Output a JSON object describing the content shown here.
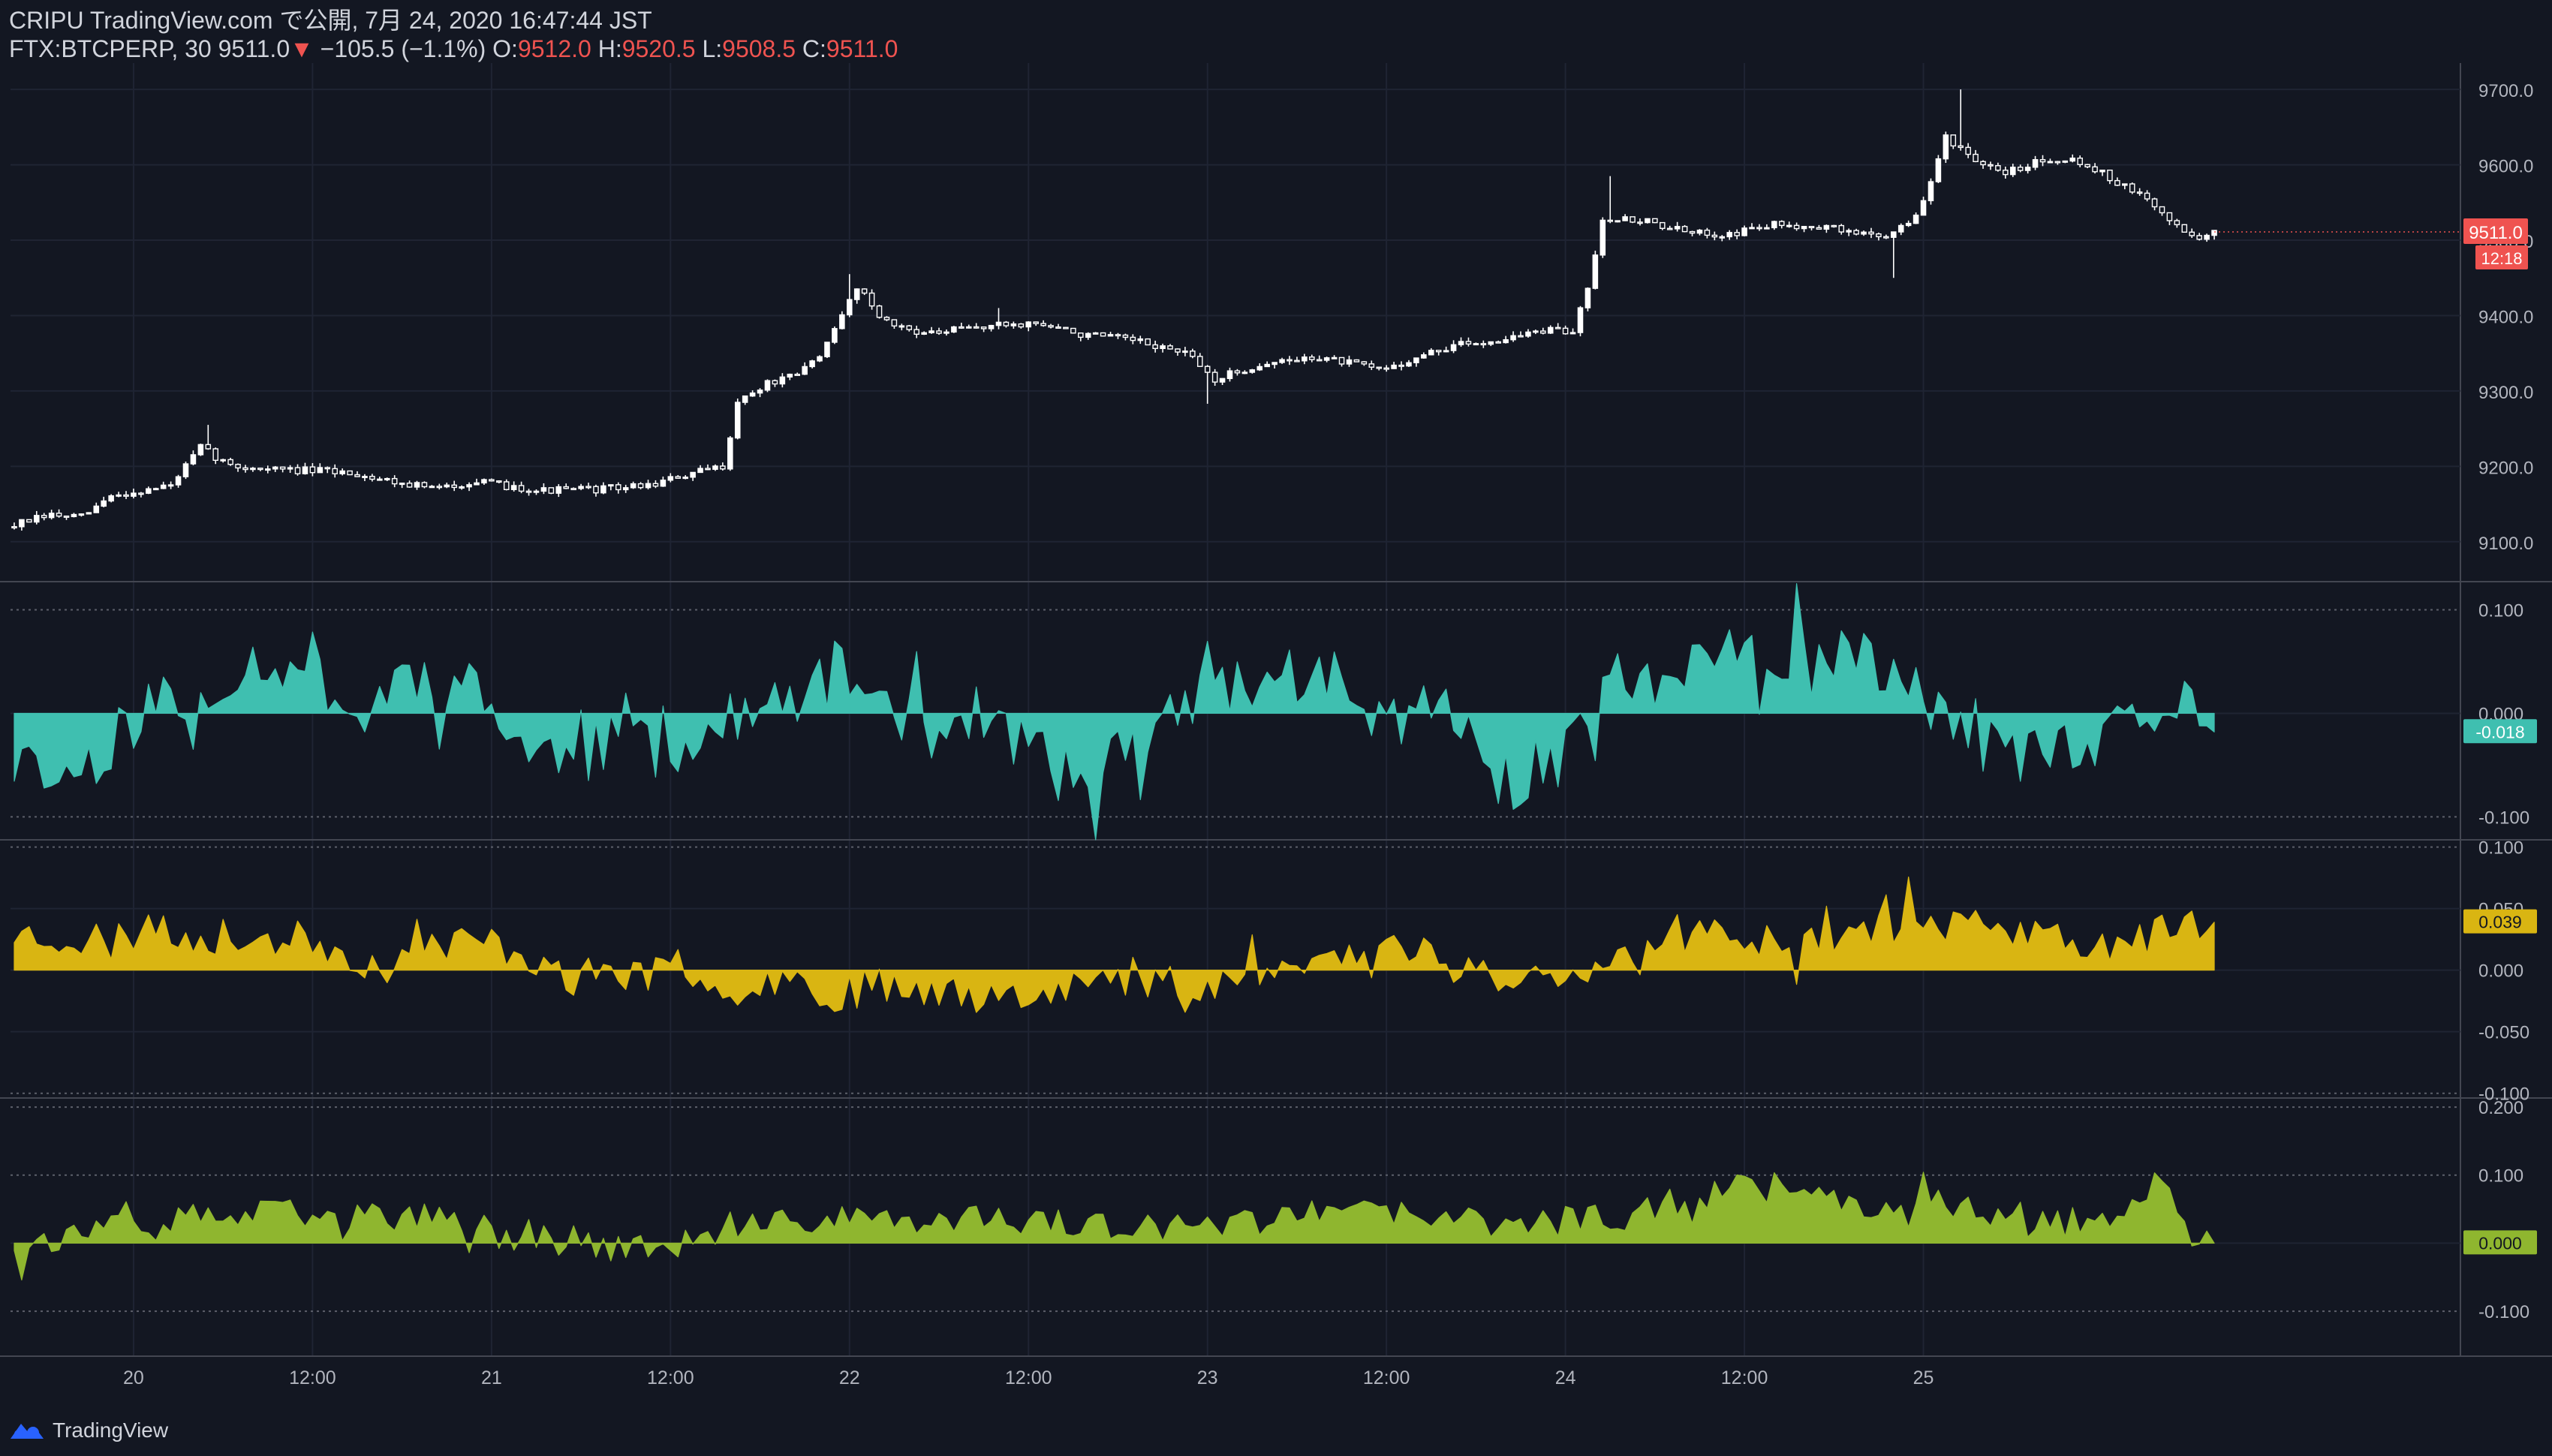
{
  "header": {
    "publish_line": "CRIPU TradingView.com で公開, 7月 24, 2020 16:47:44 JST",
    "symbol": "FTX:BTCPERP, 30",
    "last": "9511.0",
    "change_arrow": "▼",
    "change": "−105.5 (−1.1%)",
    "o_label": "O:",
    "o": "9512.0",
    "h_label": "H:",
    "h": "9520.5",
    "l_label": "L:",
    "l": "9508.5",
    "c_label": "C:",
    "c": "9511.0"
  },
  "footer": {
    "brand": "TradingView"
  },
  "colors": {
    "background": "#131722",
    "candle_up": "#ffffff",
    "candle_down": "#131722",
    "price_badge": "#ef5350",
    "teal": "#3fbfb0",
    "yellow": "#d9b512",
    "green": "#8fb62f"
  },
  "chart_data": [
    {
      "type": "candlestick",
      "name": "FTX:BTCPERP 30",
      "x_range": [
        "2020-07-19 16:00",
        "2020-07-25 02:30"
      ],
      "x_ticks": [
        "20",
        "12:00",
        "21",
        "12:00",
        "22",
        "12:00",
        "23",
        "12:00",
        "24",
        "12:00",
        "25"
      ],
      "y_ticks": [
        "9100.0",
        "9200.0",
        "9300.0",
        "9400.0",
        "9500.0",
        "9600.0",
        "9700.0"
      ],
      "y_range": [
        9050,
        9735
      ],
      "last_price_label": "9511.0",
      "countdown_label": "12:18",
      "close_path": [
        [
          0,
          9120
        ],
        [
          6,
          9135
        ],
        [
          10,
          9132
        ],
        [
          14,
          9160
        ],
        [
          22,
          9175
        ],
        [
          26,
          9225
        ],
        [
          30,
          9200
        ],
        [
          38,
          9195
        ],
        [
          46,
          9192
        ],
        [
          52,
          9180
        ],
        [
          58,
          9170
        ],
        [
          62,
          9180
        ],
        [
          66,
          9175
        ],
        [
          72,
          9168
        ],
        [
          80,
          9170
        ],
        [
          86,
          9175
        ],
        [
          92,
          9190
        ],
        [
          96,
          9200
        ],
        [
          98,
          9285
        ],
        [
          102,
          9310
        ],
        [
          106,
          9320
        ],
        [
          110,
          9360
        ],
        [
          114,
          9440
        ],
        [
          118,
          9390
        ],
        [
          124,
          9375
        ],
        [
          130,
          9385
        ],
        [
          138,
          9390
        ],
        [
          144,
          9375
        ],
        [
          150,
          9368
        ],
        [
          154,
          9360
        ],
        [
          158,
          9350
        ],
        [
          162,
          9315
        ],
        [
          168,
          9335
        ],
        [
          176,
          9345
        ],
        [
          184,
          9328
        ],
        [
          188,
          9340
        ],
        [
          194,
          9360
        ],
        [
          200,
          9368
        ],
        [
          206,
          9380
        ],
        [
          210,
          9378
        ],
        [
          212,
          9440
        ],
        [
          214,
          9530
        ],
        [
          220,
          9525
        ],
        [
          226,
          9508
        ],
        [
          232,
          9510
        ],
        [
          236,
          9520
        ],
        [
          242,
          9520
        ],
        [
          248,
          9510
        ],
        [
          252,
          9505
        ],
        [
          254,
          9520
        ],
        [
          256,
          9530
        ],
        [
          258,
          9575
        ],
        [
          260,
          9640
        ],
        [
          264,
          9600
        ],
        [
          268,
          9590
        ],
        [
          272,
          9605
        ],
        [
          276,
          9610
        ],
        [
          280,
          9595
        ],
        [
          284,
          9570
        ],
        [
          286,
          9560
        ],
        [
          288,
          9545
        ],
        [
          292,
          9510
        ],
        [
          294,
          9505
        ],
        [
          296,
          9511
        ]
      ],
      "wick_spikes": [
        [
          26,
          9255
        ],
        [
          112,
          9455
        ],
        [
          132,
          9410
        ],
        [
          160,
          9283
        ],
        [
          214,
          9585
        ],
        [
          252,
          9450
        ],
        [
          261,
          9700
        ]
      ]
    },
    {
      "type": "area",
      "name": "indicator-1",
      "y_ticks": [
        "0.100",
        "0.000",
        "-0.100"
      ],
      "y_range": [
        -0.12,
        0.125
      ],
      "last_value_label": "-0.018",
      "color": "#3fbfb0",
      "seed": 11,
      "noise": 0.03,
      "envelope": [
        [
          0,
          -0.05
        ],
        [
          8,
          -0.06
        ],
        [
          14,
          -0.02
        ],
        [
          20,
          0.02
        ],
        [
          24,
          -0.02
        ],
        [
          30,
          0.05
        ],
        [
          40,
          0.05
        ],
        [
          46,
          -0.01
        ],
        [
          52,
          0.04
        ],
        [
          60,
          0.03
        ],
        [
          68,
          -0.03
        ],
        [
          76,
          -0.05
        ],
        [
          82,
          -0.01
        ],
        [
          90,
          -0.03
        ],
        [
          96,
          -0.01
        ],
        [
          104,
          0.01
        ],
        [
          110,
          0.04
        ],
        [
          118,
          0.01
        ],
        [
          122,
          -0.02
        ],
        [
          128,
          0.0
        ],
        [
          136,
          -0.03
        ],
        [
          142,
          -0.07
        ],
        [
          148,
          -0.04
        ],
        [
          154,
          -0.02
        ],
        [
          160,
          0.04
        ],
        [
          166,
          0.02
        ],
        [
          170,
          0.04
        ],
        [
          176,
          0.03
        ],
        [
          182,
          -0.01
        ],
        [
          190,
          0.01
        ],
        [
          196,
          -0.03
        ],
        [
          202,
          -0.07
        ],
        [
          206,
          -0.04
        ],
        [
          210,
          0.0
        ],
        [
          214,
          0.04
        ],
        [
          220,
          0.02
        ],
        [
          226,
          0.06
        ],
        [
          232,
          0.05
        ],
        [
          240,
          0.04
        ],
        [
          246,
          0.06
        ],
        [
          252,
          0.03
        ],
        [
          258,
          0.01
        ],
        [
          262,
          -0.03
        ],
        [
          270,
          -0.04
        ],
        [
          278,
          -0.04
        ],
        [
          284,
          -0.01
        ],
        [
          290,
          0.01
        ],
        [
          294,
          0.01
        ],
        [
          296,
          -0.018
        ]
      ]
    },
    {
      "type": "area",
      "name": "indicator-2",
      "y_ticks": [
        "0.100",
        "0.050",
        "0.000",
        "-0.050",
        "-0.100"
      ],
      "y_range": [
        -0.102,
        0.104
      ],
      "last_value_label": "0.039",
      "color": "#d9b512",
      "seed": 23,
      "noise": 0.015,
      "envelope": [
        [
          0,
          0.03
        ],
        [
          10,
          0.025
        ],
        [
          20,
          0.03
        ],
        [
          30,
          0.025
        ],
        [
          40,
          0.025
        ],
        [
          46,
          0.01
        ],
        [
          50,
          0.0
        ],
        [
          56,
          0.02
        ],
        [
          62,
          0.025
        ],
        [
          70,
          0.01
        ],
        [
          74,
          -0.01
        ],
        [
          80,
          0.0
        ],
        [
          88,
          -0.005
        ],
        [
          96,
          -0.01
        ],
        [
          104,
          -0.005
        ],
        [
          110,
          -0.02
        ],
        [
          118,
          -0.01
        ],
        [
          124,
          -0.015
        ],
        [
          130,
          -0.02
        ],
        [
          136,
          -0.015
        ],
        [
          144,
          -0.01
        ],
        [
          150,
          -0.01
        ],
        [
          156,
          -0.015
        ],
        [
          164,
          -0.005
        ],
        [
          170,
          0.0
        ],
        [
          176,
          0.01
        ],
        [
          184,
          0.015
        ],
        [
          190,
          0.02
        ],
        [
          196,
          0.0
        ],
        [
          202,
          -0.01
        ],
        [
          208,
          0.0
        ],
        [
          214,
          0.01
        ],
        [
          218,
          0.01
        ],
        [
          222,
          0.025
        ],
        [
          230,
          0.03
        ],
        [
          236,
          0.025
        ],
        [
          244,
          0.03
        ],
        [
          250,
          0.035
        ],
        [
          256,
          0.04
        ],
        [
          262,
          0.035
        ],
        [
          270,
          0.03
        ],
        [
          278,
          0.02
        ],
        [
          286,
          0.025
        ],
        [
          292,
          0.04
        ],
        [
          296,
          0.039
        ]
      ]
    },
    {
      "type": "area",
      "name": "indicator-3",
      "y_ticks": [
        "0.200",
        "0.100",
        "0.000",
        "-0.100"
      ],
      "y_range": [
        -0.165,
        0.21
      ],
      "last_value_label": "0.000",
      "color": "#8fb62f",
      "seed": 37,
      "noise": 0.022,
      "envelope": [
        [
          0,
          0.0
        ],
        [
          8,
          0.01
        ],
        [
          14,
          0.02
        ],
        [
          22,
          0.035
        ],
        [
          30,
          0.04
        ],
        [
          38,
          0.045
        ],
        [
          44,
          0.04
        ],
        [
          50,
          0.04
        ],
        [
          56,
          0.035
        ],
        [
          62,
          0.03
        ],
        [
          68,
          0.02
        ],
        [
          74,
          0.0
        ],
        [
          80,
          -0.005
        ],
        [
          86,
          -0.01
        ],
        [
          92,
          0.005
        ],
        [
          98,
          0.02
        ],
        [
          104,
          0.03
        ],
        [
          112,
          0.04
        ],
        [
          120,
          0.035
        ],
        [
          128,
          0.04
        ],
        [
          134,
          0.025
        ],
        [
          140,
          0.03
        ],
        [
          148,
          0.02
        ],
        [
          156,
          0.02
        ],
        [
          164,
          0.03
        ],
        [
          172,
          0.04
        ],
        [
          180,
          0.045
        ],
        [
          188,
          0.04
        ],
        [
          196,
          0.03
        ],
        [
          204,
          0.03
        ],
        [
          210,
          0.035
        ],
        [
          216,
          0.04
        ],
        [
          222,
          0.06
        ],
        [
          230,
          0.08
        ],
        [
          236,
          0.09
        ],
        [
          244,
          0.08
        ],
        [
          250,
          0.05
        ],
        [
          256,
          0.06
        ],
        [
          262,
          0.05
        ],
        [
          268,
          0.04
        ],
        [
          274,
          0.03
        ],
        [
          280,
          0.04
        ],
        [
          286,
          0.05
        ],
        [
          288,
          0.11
        ],
        [
          290,
          0.03
        ],
        [
          292,
          0.01
        ],
        [
          296,
          0.0
        ]
      ]
    }
  ]
}
